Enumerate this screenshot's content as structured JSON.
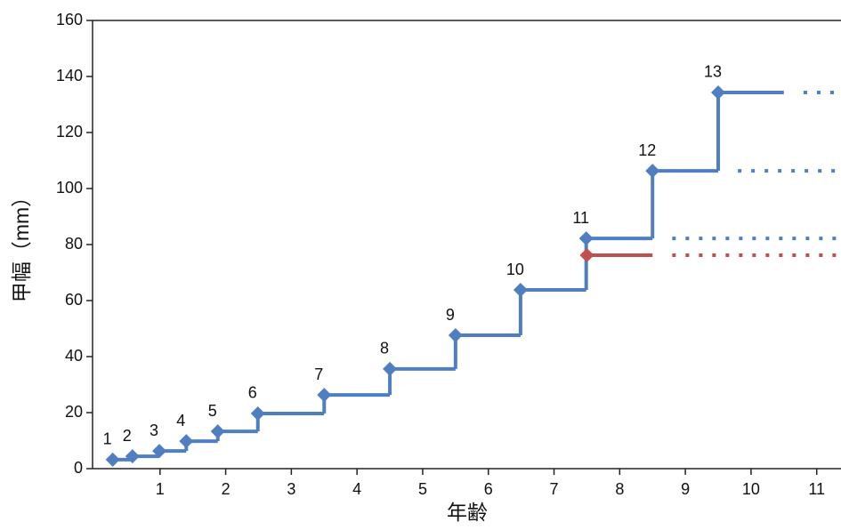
{
  "chart_data": {
    "type": "step",
    "xlabel": "年齢",
    "ylabel": "甲幅（mm）",
    "xlim": [
      0,
      11.37
    ],
    "xticks": [
      1,
      2,
      3,
      4,
      5,
      6,
      7,
      8,
      9,
      10,
      11
    ],
    "ylim": [
      0,
      160
    ],
    "yticks": [
      0,
      20,
      40,
      60,
      80,
      100,
      120,
      140,
      160
    ],
    "series": [
      {
        "color": "#4f7fc0",
        "x": [
          0.28,
          0.58,
          0.99,
          1.4,
          1.88,
          2.49,
          3.5,
          4.5,
          5.5,
          6.49,
          7.49,
          8.5,
          9.5
        ],
        "values": [
          3.2,
          4.4,
          6.3,
          9.8,
          13.3,
          19.7,
          26.3,
          35.6,
          47.6,
          63.8,
          82.2,
          106.3,
          134.3
        ],
        "labels": [
          1,
          2,
          3,
          4,
          5,
          6,
          7,
          8,
          9,
          10,
          11,
          12,
          13
        ]
      },
      {
        "color": "#c0504d",
        "x": [
          7.5
        ],
        "values": [
          76.2
        ]
      }
    ]
  }
}
